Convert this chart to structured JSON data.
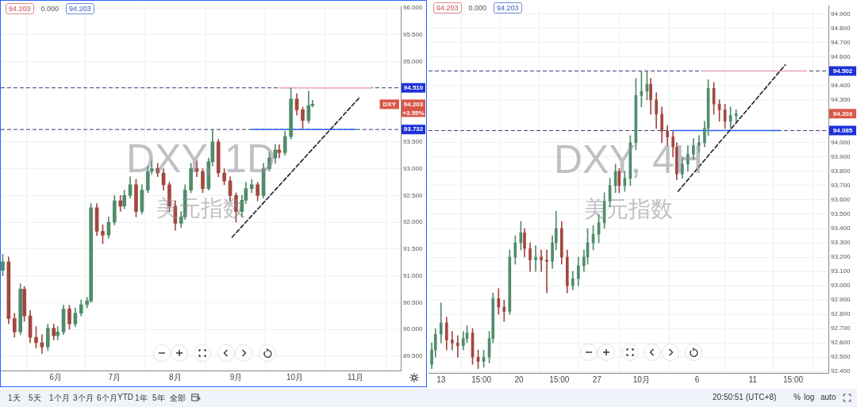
{
  "chart_data": [
    {
      "type": "candlestick",
      "grid": true,
      "legend": false,
      "x": [
        "--05-05",
        "--05-08",
        "--05-11",
        "--05-14",
        "--05-16",
        "--05-19",
        "--05-22",
        "--05-25",
        "--05-28",
        "--05-31",
        "--06-02",
        "--06-05",
        "--06-08",
        "--06-11",
        "--06-14",
        "--06-17",
        "--06-19",
        "--06-22",
        "--06-25",
        "--06-28",
        "--07-01",
        "--07-04",
        "--07-06",
        "--07-09",
        "--07-12",
        "--07-15",
        "--07-18",
        "--07-20",
        "--07-23",
        "--07-26",
        "--07-29",
        "--08-01",
        "--08-04",
        "--08-06",
        "--08-09",
        "--08-12",
        "--08-15",
        "--08-18",
        "--08-20",
        "--08-23",
        "--08-26",
        "--08-29",
        "--09-01",
        "--09-04",
        "--09-06",
        "--09-09",
        "--09-12",
        "--09-15",
        "--09-18",
        "--09-21",
        "--09-23",
        "--09-26",
        "--09-29",
        "--10-02",
        "--10-05",
        "--10-08",
        "--10-10"
      ],
      "ohlc": [
        [
          91.1,
          91.4,
          91.0,
          91.26
        ],
        [
          91.26,
          91.35,
          90.1,
          90.2
        ],
        [
          90.2,
          90.3,
          89.85,
          89.95
        ],
        [
          89.95,
          90.85,
          89.9,
          90.75
        ],
        [
          90.75,
          90.8,
          90.15,
          90.25
        ],
        [
          90.25,
          90.35,
          89.75,
          89.85
        ],
        [
          89.85,
          90.05,
          89.65,
          89.75
        ],
        [
          89.75,
          89.9,
          89.55,
          89.67
        ],
        [
          89.67,
          90.1,
          89.6,
          90.02
        ],
        [
          90.02,
          90.1,
          89.8,
          89.88
        ],
        [
          89.88,
          90.05,
          89.8,
          89.95
        ],
        [
          89.95,
          90.45,
          89.9,
          90.38
        ],
        [
          90.38,
          90.45,
          90.0,
          90.1
        ],
        [
          90.1,
          90.4,
          90.05,
          90.3
        ],
        [
          90.3,
          90.55,
          90.25,
          90.46
        ],
        [
          90.46,
          90.6,
          90.4,
          90.53
        ],
        [
          90.53,
          92.35,
          90.5,
          92.27
        ],
        [
          92.27,
          92.35,
          91.75,
          91.83
        ],
        [
          91.83,
          91.95,
          91.6,
          91.76
        ],
        [
          91.76,
          92.1,
          91.7,
          92.0
        ],
        [
          92.0,
          92.5,
          91.95,
          92.4
        ],
        [
          92.4,
          92.5,
          92.2,
          92.3
        ],
        [
          92.3,
          92.6,
          92.25,
          92.5
        ],
        [
          92.5,
          92.85,
          92.45,
          92.7
        ],
        [
          92.7,
          92.8,
          92.1,
          92.2
        ],
        [
          92.2,
          92.7,
          92.15,
          92.6
        ],
        [
          92.6,
          93.05,
          92.55,
          92.95
        ],
        [
          92.95,
          93.15,
          92.9,
          93.0
        ],
        [
          93.0,
          93.1,
          92.85,
          92.92
        ],
        [
          92.92,
          93.0,
          92.6,
          92.7
        ],
        [
          92.7,
          92.75,
          92.2,
          92.3
        ],
        [
          92.3,
          92.4,
          91.85,
          91.98
        ],
        [
          91.98,
          92.2,
          91.9,
          92.1
        ],
        [
          92.1,
          92.7,
          92.05,
          92.6
        ],
        [
          92.6,
          93.1,
          92.55,
          93.0
        ],
        [
          93.0,
          93.15,
          92.85,
          92.95
        ],
        [
          92.95,
          93.0,
          92.55,
          92.63
        ],
        [
          92.63,
          93.2,
          92.6,
          93.13
        ],
        [
          93.13,
          93.73,
          93.05,
          93.5
        ],
        [
          93.5,
          93.55,
          92.85,
          92.92
        ],
        [
          92.92,
          93.0,
          92.7,
          92.77
        ],
        [
          92.77,
          92.85,
          92.4,
          92.5
        ],
        [
          92.5,
          92.55,
          92.0,
          92.2
        ],
        [
          92.2,
          92.5,
          92.1,
          92.41
        ],
        [
          92.41,
          92.75,
          92.35,
          92.63
        ],
        [
          92.63,
          92.8,
          92.55,
          92.7
        ],
        [
          92.7,
          92.75,
          92.4,
          92.5
        ],
        [
          92.5,
          93.1,
          92.45,
          93.0
        ],
        [
          93.0,
          93.3,
          92.95,
          93.2
        ],
        [
          93.2,
          93.45,
          93.1,
          93.35
        ],
        [
          93.35,
          93.45,
          93.2,
          93.3
        ],
        [
          93.3,
          93.7,
          93.25,
          93.6
        ],
        [
          93.6,
          94.51,
          93.55,
          94.3
        ],
        [
          94.3,
          94.4,
          94.0,
          94.1
        ],
        [
          94.1,
          94.15,
          93.75,
          93.9
        ],
        [
          93.9,
          94.45,
          93.85,
          94.18
        ],
        [
          94.18,
          94.28,
          94.15,
          94.203
        ]
      ],
      "colors": [
        "#508c6b",
        "#a3473f",
        "#a3473f",
        "#508c6b",
        "#a3473f",
        "#a3473f",
        "#a3473f",
        "#a3473f",
        "#508c6b",
        "#a3473f",
        "#508c6b",
        "#508c6b",
        "#a3473f",
        "#508c6b",
        "#508c6b",
        "#508c6b",
        "#508c6b",
        "#a3473f",
        "#a3473f",
        "#508c6b",
        "#508c6b",
        "#a3473f",
        "#508c6b",
        "#508c6b",
        "#a3473f",
        "#508c6b",
        "#508c6b",
        "#508c6b",
        "#a3473f",
        "#a3473f",
        "#a3473f",
        "#a3473f",
        "#508c6b",
        "#508c6b",
        "#508c6b",
        "#a3473f",
        "#a3473f",
        "#508c6b",
        "#508c6b",
        "#a3473f",
        "#a3473f",
        "#a3473f",
        "#a3473f",
        "#508c6b",
        "#508c6b",
        "#508c6b",
        "#a3473f",
        "#508c6b",
        "#508c6b",
        "#508c6b",
        "#a3473f",
        "#508c6b",
        "#508c6b",
        "#a3473f",
        "#a3473f",
        "#508c6b",
        "#508c6b"
      ],
      "series": [
        {
          "type": "line",
          "x": [
            "--08-30",
            "--11-03"
          ],
          "values": [
            91.72,
            94.33
          ],
          "color": "#1c1c2e",
          "line_style": "dashed"
        },
        {
          "type": "line",
          "x": [
            "--09-23",
            "--11-09"
          ],
          "values": [
            94.51,
            94.51
          ],
          "color": "#f4a7bb",
          "line_style": "solid"
        },
        {
          "type": "line",
          "x": [
            "--09-09",
            "--11-01"
          ],
          "values": [
            93.732,
            93.732
          ],
          "color": "#2962ff",
          "line_style": "solid"
        }
      ],
      "xlim": [
        "--05-04",
        "--11-24"
      ],
      "xticks": [
        {
          "value": "--06-01",
          "label": "6月"
        },
        {
          "value": "--07-01",
          "label": "7月"
        },
        {
          "value": "--08-01",
          "label": "8月"
        },
        {
          "value": "--09-01",
          "label": "9月"
        },
        {
          "value": "--10-01",
          "label": "10月"
        },
        {
          "value": "--11-01",
          "label": "11月"
        }
      ],
      "ylim": [
        89.23,
        96.02
      ],
      "yticks": [
        {
          "value": 89.5,
          "label": "89.500"
        },
        {
          "value": 90,
          "label": "90.000"
        },
        {
          "value": 90.5,
          "label": "90.500"
        },
        {
          "value": 91,
          "label": "91.000"
        },
        {
          "value": 91.5,
          "label": "91.500"
        },
        {
          "value": 92,
          "label": "92.000"
        },
        {
          "value": 92.5,
          "label": "92.500"
        },
        {
          "value": 93,
          "label": "93.000"
        },
        {
          "value": 93.5,
          "label": "93.500"
        },
        {
          "value": 95,
          "label": "95.000"
        },
        {
          "value": 95.5,
          "label": "95.500"
        },
        {
          "value": 96,
          "label": "96.000"
        }
      ],
      "ref_lines": [
        {
          "axis": "y",
          "value": 94.51,
          "label": "94.510",
          "color": "#3b3b78",
          "line_style": "dashed"
        },
        {
          "axis": "y",
          "value": 93.732,
          "label": "93.732",
          "color": "#3b3b78",
          "line_style": "dashed"
        }
      ],
      "annotations": [
        "94.203",
        "0.000",
        "94.203",
        "DXY, 1D",
        "美元指数",
        "DXY",
        "94.203",
        "+3.55%",
        "1天",
        "5天",
        "1个月",
        "3个月",
        "6个月",
        "YTD",
        "1年",
        "5年",
        "全部"
      ]
    },
    {
      "type": "candlestick",
      "grid": true,
      "legend": false,
      "x": [
        "--09-12T04:00",
        "--09-12T12:00",
        "--09-13T00:00",
        "--09-13T12:00",
        "--09-14T00:00",
        "--09-14T12:00",
        "--09-15T00:00",
        "--09-15T08:00",
        "--09-15T20:00",
        "--09-16T08:00",
        "--09-16T20:00",
        "--09-17T08:00",
        "--09-17T16:00",
        "--09-18T04:00",
        "--09-18T16:00",
        "--09-19T04:00",
        "--09-19T16:00",
        "--09-20T04:00",
        "--09-20T12:00",
        "--09-21T00:00",
        "--09-21T12:00",
        "--09-22T00:00",
        "--09-22T12:00",
        "--09-23T00:00",
        "--09-23T08:00",
        "--09-23T20:00",
        "--09-24T08:00",
        "--09-24T20:00",
        "--09-25T08:00",
        "--09-25T20:00",
        "--09-26T04:00",
        "--09-26T16:00",
        "--09-27T04:00",
        "--09-27T16:00",
        "--09-28T04:00",
        "--09-28T16:00",
        "--09-29T00:00",
        "--09-29T12:00",
        "--09-30T00:00",
        "--09-30T12:00",
        "--10-01T00:00",
        "--10-01T12:00",
        "--10-01T20:00",
        "--10-02T08:00",
        "--10-02T20:00",
        "--10-03T08:00",
        "--10-03T20:00",
        "--10-04T04:00",
        "--10-04T16:00",
        "--10-05T04:00",
        "--10-05T16:00",
        "--10-06T04:00",
        "--10-06T16:00",
        "--10-07T00:00",
        "--10-07T12:00",
        "--10-08T00:00",
        "--10-08T12:00",
        "--10-09T00:00",
        "--10-09T12:00"
      ],
      "ohlc": [
        [
          92.45,
          92.6,
          92.42,
          92.55
        ],
        [
          92.55,
          92.7,
          92.5,
          92.66
        ],
        [
          92.66,
          92.88,
          92.6,
          92.74
        ],
        [
          92.74,
          92.78,
          92.55,
          92.62
        ],
        [
          92.62,
          92.68,
          92.55,
          92.6
        ],
        [
          92.6,
          92.65,
          92.5,
          92.58
        ],
        [
          92.58,
          92.68,
          92.55,
          92.63
        ],
        [
          92.63,
          92.72,
          92.6,
          92.67
        ],
        [
          92.67,
          92.7,
          92.45,
          92.5
        ],
        [
          92.5,
          92.55,
          92.42,
          92.47
        ],
        [
          92.47,
          92.55,
          92.43,
          92.5
        ],
        [
          92.5,
          92.68,
          92.46,
          92.63
        ],
        [
          92.63,
          92.95,
          92.6,
          92.91
        ],
        [
          92.91,
          92.98,
          92.8,
          92.85
        ],
        [
          92.85,
          92.9,
          92.75,
          92.82
        ],
        [
          92.82,
          93.25,
          92.8,
          93.2
        ],
        [
          93.2,
          93.35,
          93.15,
          93.3
        ],
        [
          93.3,
          93.45,
          93.25,
          93.37
        ],
        [
          93.37,
          93.4,
          93.2,
          93.26
        ],
        [
          93.26,
          93.3,
          93.1,
          93.18
        ],
        [
          93.18,
          93.28,
          93.1,
          93.2
        ],
        [
          93.2,
          93.25,
          93.1,
          93.18
        ],
        [
          93.18,
          93.25,
          92.95,
          93.17
        ],
        [
          93.17,
          93.35,
          93.12,
          93.3
        ],
        [
          93.3,
          93.52,
          93.25,
          93.4
        ],
        [
          93.4,
          93.45,
          93.15,
          93.2
        ],
        [
          93.2,
          93.25,
          92.95,
          93.0
        ],
        [
          93.0,
          93.1,
          92.97,
          93.05
        ],
        [
          93.05,
          93.2,
          93.0,
          93.14
        ],
        [
          93.14,
          93.25,
          93.1,
          93.2
        ],
        [
          93.2,
          93.4,
          93.15,
          93.3
        ],
        [
          93.3,
          93.42,
          93.25,
          93.36
        ],
        [
          93.36,
          93.5,
          93.3,
          93.44
        ],
        [
          93.44,
          93.65,
          93.4,
          93.59
        ],
        [
          93.59,
          93.75,
          93.55,
          93.7
        ],
        [
          93.7,
          93.85,
          93.65,
          93.8
        ],
        [
          93.8,
          93.82,
          93.65,
          93.7
        ],
        [
          93.7,
          93.8,
          93.66,
          93.75
        ],
        [
          93.75,
          94.05,
          93.7,
          94.0
        ],
        [
          94.0,
          94.45,
          93.95,
          94.33
        ],
        [
          94.33,
          94.5,
          94.25,
          94.36
        ],
        [
          94.36,
          94.5,
          94.3,
          94.41
        ],
        [
          94.41,
          94.45,
          94.2,
          94.3
        ],
        [
          94.3,
          94.35,
          94.1,
          94.2
        ],
        [
          94.2,
          94.25,
          94.0,
          94.08
        ],
        [
          94.08,
          94.12,
          93.98,
          94.04
        ],
        [
          94.04,
          94.08,
          93.9,
          93.97
        ],
        [
          93.97,
          94.0,
          93.74,
          93.78
        ],
        [
          93.78,
          93.9,
          93.75,
          93.85
        ],
        [
          93.85,
          93.98,
          93.8,
          93.92
        ],
        [
          93.92,
          94.03,
          93.88,
          93.98
        ],
        [
          93.98,
          94.05,
          93.93,
          94.0
        ],
        [
          94.0,
          94.15,
          93.97,
          94.1
        ],
        [
          94.1,
          94.44,
          94.05,
          94.38
        ],
        [
          94.38,
          94.42,
          94.2,
          94.27
        ],
        [
          94.27,
          94.3,
          94.15,
          94.23
        ],
        [
          94.23,
          94.27,
          94.1,
          94.15
        ],
        [
          94.15,
          94.25,
          94.1,
          94.19
        ],
        [
          94.19,
          94.23,
          94.15,
          94.203
        ]
      ],
      "colors": [
        "#508c6b",
        "#508c6b",
        "#508c6b",
        "#a3473f",
        "#a3473f",
        "#a3473f",
        "#508c6b",
        "#508c6b",
        "#a3473f",
        "#a3473f",
        "#508c6b",
        "#508c6b",
        "#508c6b",
        "#a3473f",
        "#a3473f",
        "#508c6b",
        "#508c6b",
        "#508c6b",
        "#a3473f",
        "#a3473f",
        "#508c6b",
        "#a3473f",
        "#a3473f",
        "#508c6b",
        "#508c6b",
        "#a3473f",
        "#a3473f",
        "#508c6b",
        "#508c6b",
        "#508c6b",
        "#508c6b",
        "#508c6b",
        "#508c6b",
        "#508c6b",
        "#508c6b",
        "#508c6b",
        "#a3473f",
        "#508c6b",
        "#508c6b",
        "#508c6b",
        "#508c6b",
        "#508c6b",
        "#a3473f",
        "#a3473f",
        "#a3473f",
        "#a3473f",
        "#a3473f",
        "#a3473f",
        "#508c6b",
        "#508c6b",
        "#508c6b",
        "#508c6b",
        "#508c6b",
        "#508c6b",
        "#a3473f",
        "#a3473f",
        "#a3473f",
        "#508c6b",
        "#508c6b"
      ],
      "series": [
        {
          "type": "line",
          "x": [
            "--10-04T07:00",
            "--10-13T22:00"
          ],
          "values": [
            93.66,
            94.545
          ],
          "color": "#1c1c2e",
          "line_style": "dashed"
        },
        {
          "type": "line",
          "x": [
            "--10-06T12:00",
            "--10-15T19:00"
          ],
          "values": [
            94.502,
            94.502
          ],
          "color": "#f4a7bb",
          "line_style": "solid"
        },
        {
          "type": "line",
          "x": [
            "--10-03T19:00",
            "--10-13T10:00"
          ],
          "values": [
            94.085,
            94.085
          ],
          "color": "#2962ff",
          "line_style": "solid"
        }
      ],
      "xlim": [
        "--09-11T21:00",
        "--10-17T19:00"
      ],
      "xticks": [
        {
          "value": "--09-13",
          "label": "13"
        },
        {
          "value": "--09-16T15:00",
          "label": "15:00"
        },
        {
          "value": "--09-20",
          "label": "20"
        },
        {
          "value": "--09-23T15:00",
          "label": "15:00"
        },
        {
          "value": "--09-27",
          "label": "27"
        },
        {
          "value": "--10-01",
          "label": "10月"
        },
        {
          "value": "--10-06",
          "label": "6"
        },
        {
          "value": "--10-11",
          "label": "11"
        },
        {
          "value": "--10-14T15:00",
          "label": "15:00"
        }
      ],
      "ylim": [
        92.39,
        94.955
      ],
      "yticks": [
        {
          "value": 92.4,
          "label": "92.400"
        },
        {
          "value": 92.5,
          "label": "92.500"
        },
        {
          "value": 92.6,
          "label": "92.600"
        },
        {
          "value": 92.7,
          "label": "92.700"
        },
        {
          "value": 92.8,
          "label": "92.800"
        },
        {
          "value": 92.9,
          "label": "92.900"
        },
        {
          "value": 93.0,
          "label": "93.000"
        },
        {
          "value": 93.1,
          "label": "93.100"
        },
        {
          "value": 93.2,
          "label": "93.200"
        },
        {
          "value": 93.3,
          "label": "93.300"
        },
        {
          "value": 93.4,
          "label": "93.400"
        },
        {
          "value": 93.5,
          "label": "93.500"
        },
        {
          "value": 93.6,
          "label": "93.600"
        },
        {
          "value": 93.7,
          "label": "93.700"
        },
        {
          "value": 93.8,
          "label": "93.800"
        },
        {
          "value": 93.9,
          "label": "93.900"
        },
        {
          "value": 94.0,
          "label": "94.000"
        },
        {
          "value": 94.3,
          "label": "94.300"
        },
        {
          "value": 94.4,
          "label": "94.400"
        },
        {
          "value": 94.6,
          "label": "94.600"
        },
        {
          "value": 94.7,
          "label": "94.700"
        },
        {
          "value": 94.8,
          "label": "94.800"
        },
        {
          "value": 94.9,
          "label": "94.900"
        }
      ],
      "ref_lines": [
        {
          "axis": "y",
          "value": 94.502,
          "label": "94.502",
          "color": "#3b3b78",
          "line_style": "dashed"
        },
        {
          "axis": "y",
          "value": 94.085,
          "label": "94.085",
          "color": "#3b3b78",
          "line_style": "dashed"
        }
      ],
      "annotations": [
        "94.203",
        "0.000",
        "94.203",
        "DXY, 4H",
        "美元指数",
        "94.203",
        "20:50:51 (UTC+8)",
        "%",
        "log",
        "auto"
      ]
    }
  ]
}
